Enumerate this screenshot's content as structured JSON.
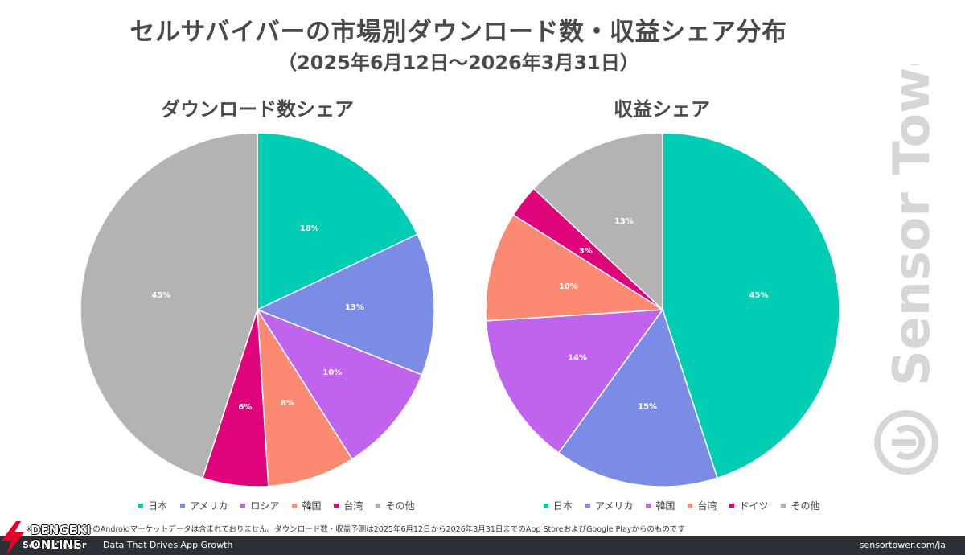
{
  "title": "セルサバイバーの市場別ダウンロード数・収益シェア分布",
  "subtitle": "（2025年6月12日～2026年3月31日）",
  "chart_data": [
    {
      "type": "pie",
      "title": "ダウンロード数シェア",
      "categories": [
        "日本",
        "アメリカ",
        "ロシア",
        "韓国",
        "台湾",
        "その他"
      ],
      "values": [
        18,
        13,
        10,
        8,
        6,
        45
      ],
      "labels": [
        "18%",
        "13%",
        "10%",
        "8%",
        "6%",
        "45%"
      ],
      "colors": [
        "#00cdb4",
        "#7b8ce6",
        "#c064ee",
        "#fb8a70",
        "#e0047a",
        "#b3b3b3"
      ],
      "legend_position": "bottom"
    },
    {
      "type": "pie",
      "title": "収益シェア",
      "categories": [
        "日本",
        "アメリカ",
        "韓国",
        "台湾",
        "ドイツ",
        "その他"
      ],
      "values": [
        45,
        15,
        14,
        10,
        3,
        13
      ],
      "labels": [
        "45%",
        "15%",
        "14%",
        "10%",
        "3%",
        "13%"
      ],
      "colors": [
        "#00cdb4",
        "#7b8ce6",
        "#c064ee",
        "#fb8a70",
        "#e0047a",
        "#b3b3b3"
      ],
      "legend_position": "bottom"
    }
  ],
  "watermark": {
    "text": "Sensor Tower",
    "icon": "sensortower-logo-icon"
  },
  "footnote": "※サードパーティーのAndroidマーケットデータは含まれておりません。ダウンロード数・収益予測は2025年6月12日から2026年3月31日までのApp StoreおよびGoogle Playからのものです",
  "footer": {
    "brand": "SensorTower",
    "tagline": "Data That Drives App Growth",
    "url": "sensortower.com/ja"
  },
  "overlay_logo": {
    "line1": "DENGEKI",
    "line2": "ONLINE",
    "icon": "lightning-bolt-icon"
  }
}
